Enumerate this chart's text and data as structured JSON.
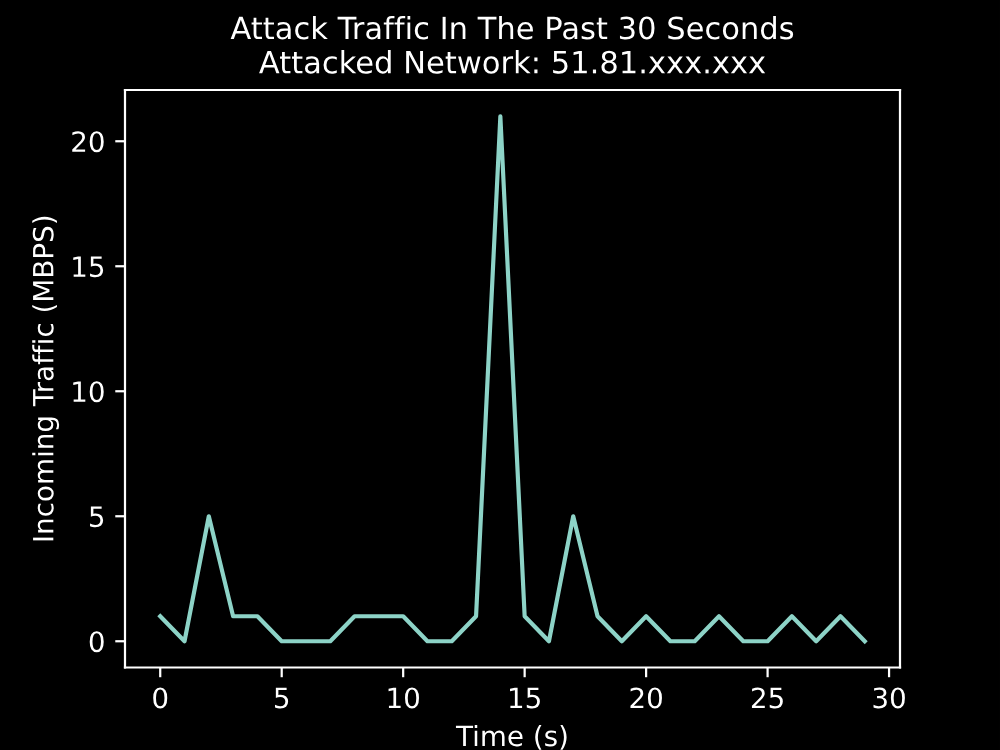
{
  "chart_data": {
    "type": "line",
    "title": "Attack Traffic In The Past 30 Seconds\nAttacked Network: 51.81.xxx.xxx",
    "xlabel": "Time (s)",
    "ylabel": "Incoming Traffic (MBPS)",
    "x": [
      0,
      1,
      2,
      3,
      4,
      5,
      6,
      7,
      8,
      9,
      10,
      11,
      12,
      13,
      14,
      15,
      16,
      17,
      18,
      19,
      20,
      21,
      22,
      23,
      24,
      25,
      26,
      27,
      28,
      29
    ],
    "series": [
      {
        "color": "#8dd3c7",
        "values": [
          1,
          0,
          5,
          1,
          1,
          0,
          0,
          0,
          1,
          1,
          1,
          0,
          0,
          1,
          21,
          1,
          0,
          5,
          1,
          0,
          1,
          0,
          0,
          1,
          0,
          0,
          1,
          0,
          1,
          0
        ]
      }
    ],
    "xlim": [
      -1.45,
      30.45
    ],
    "ylim": [
      -1.05,
      22.05
    ],
    "xticks": [
      0,
      5,
      10,
      15,
      20,
      25,
      30
    ],
    "yticks": [
      0,
      5,
      10,
      15,
      20
    ],
    "grid": false,
    "legend": false
  }
}
